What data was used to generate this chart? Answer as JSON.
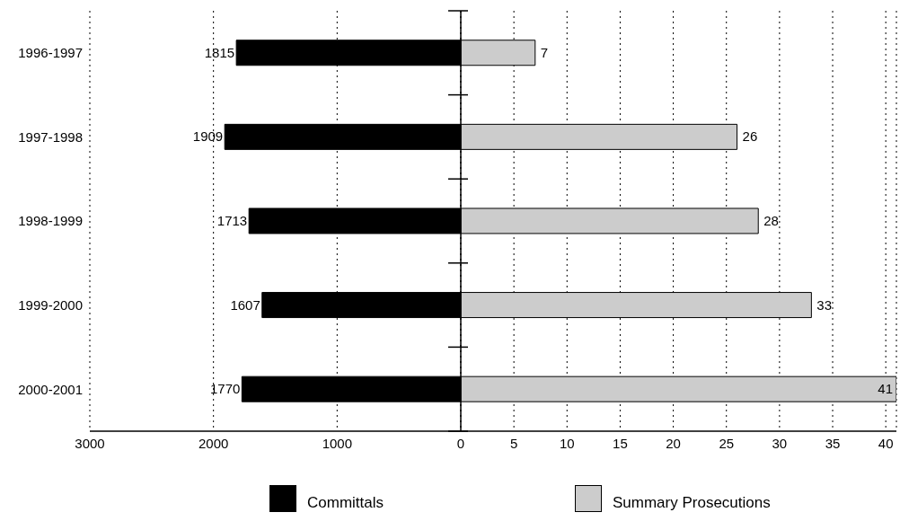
{
  "chart_data": [
    {
      "type": "bar",
      "orientation": "horizontal",
      "categories": [
        "1996-1997",
        "1997-1998",
        "1998-1999",
        "1999-2000",
        "2000-2001"
      ],
      "series": [
        {
          "name": "Committals",
          "color": "#000000",
          "values": [
            1815,
            1909,
            1713,
            1607,
            1770
          ]
        }
      ],
      "xlim": [
        3000,
        0
      ],
      "xticks": [
        3000,
        2000,
        1000,
        {
          "value": 0,
          "label": null
        }
      ],
      "grid": "x",
      "data_labels": true,
      "legend": "bottom"
    },
    {
      "type": "bar",
      "orientation": "horizontal",
      "categories": [
        null,
        null,
        null,
        null,
        null
      ],
      "series": [
        {
          "name": "Summary Prosecutions",
          "color": "#cccccc",
          "values": [
            7,
            26,
            28,
            33,
            41
          ]
        }
      ],
      "xlim": [
        0,
        41
      ],
      "xticks": [
        0,
        5,
        10,
        15,
        20,
        25,
        30,
        35,
        40
      ],
      "grid": "x",
      "data_labels": true,
      "legend": "bottom",
      "tick_labels": "x"
    }
  ]
}
